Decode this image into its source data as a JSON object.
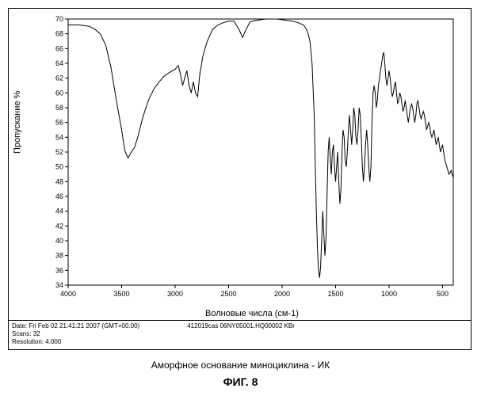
{
  "chart": {
    "type": "line",
    "xlim": [
      4000,
      400
    ],
    "ylim": [
      34,
      70
    ],
    "xtick_start": 4000,
    "xtick_step": 500,
    "xtick_end": 500,
    "ytick_start": 34,
    "ytick_step": 2,
    "ytick_end": 70,
    "xlabel": "Волновые числа (см-1)",
    "ylabel": "Пропускание %",
    "line_color": "#000000",
    "line_width": 1.0,
    "background_color": "#ffffff",
    "axis_color": "#000000",
    "tick_fontsize": 9,
    "label_fontsize": 11,
    "data": [
      [
        4000,
        69.2
      ],
      [
        3950,
        69.2
      ],
      [
        3900,
        69.2
      ],
      [
        3850,
        69.1
      ],
      [
        3800,
        69.0
      ],
      [
        3750,
        68.6
      ],
      [
        3700,
        68.0
      ],
      [
        3650,
        66.5
      ],
      [
        3600,
        63.5
      ],
      [
        3550,
        59.0
      ],
      [
        3500,
        55.0
      ],
      [
        3470,
        52.2
      ],
      [
        3440,
        51.2
      ],
      [
        3410,
        52.0
      ],
      [
        3380,
        52.6
      ],
      [
        3350,
        54.0
      ],
      [
        3300,
        56.8
      ],
      [
        3250,
        59.0
      ],
      [
        3200,
        60.5
      ],
      [
        3150,
        61.5
      ],
      [
        3100,
        62.3
      ],
      [
        3050,
        62.8
      ],
      [
        3000,
        63.2
      ],
      [
        2970,
        63.7
      ],
      [
        2950,
        62.5
      ],
      [
        2930,
        61.0
      ],
      [
        2910,
        62.0
      ],
      [
        2890,
        63.0
      ],
      [
        2870,
        61.0
      ],
      [
        2850,
        60.0
      ],
      [
        2830,
        61.5
      ],
      [
        2810,
        60.0
      ],
      [
        2790,
        59.5
      ],
      [
        2770,
        62.5
      ],
      [
        2740,
        65.0
      ],
      [
        2700,
        67.0
      ],
      [
        2650,
        68.6
      ],
      [
        2600,
        69.2
      ],
      [
        2550,
        69.5
      ],
      [
        2500,
        69.7
      ],
      [
        2450,
        69.7
      ],
      [
        2400,
        68.5
      ],
      [
        2370,
        67.5
      ],
      [
        2340,
        68.5
      ],
      [
        2300,
        69.6
      ],
      [
        2250,
        69.8
      ],
      [
        2200,
        69.9
      ],
      [
        2150,
        70.0
      ],
      [
        2100,
        70.0
      ],
      [
        2050,
        70.0
      ],
      [
        2000,
        69.9
      ],
      [
        1950,
        69.8
      ],
      [
        1900,
        69.7
      ],
      [
        1850,
        69.5
      ],
      [
        1800,
        69.2
      ],
      [
        1780,
        68.8
      ],
      [
        1760,
        68.2
      ],
      [
        1740,
        67.0
      ],
      [
        1720,
        64.0
      ],
      [
        1700,
        57.0
      ],
      [
        1690,
        50.0
      ],
      [
        1680,
        44.0
      ],
      [
        1670,
        39.0
      ],
      [
        1660,
        36.0
      ],
      [
        1650,
        35.0
      ],
      [
        1640,
        36.5
      ],
      [
        1630,
        40.0
      ],
      [
        1620,
        44.0
      ],
      [
        1610,
        41.0
      ],
      [
        1600,
        38.0
      ],
      [
        1590,
        40.0
      ],
      [
        1580,
        46.0
      ],
      [
        1570,
        52.0
      ],
      [
        1560,
        54.0
      ],
      [
        1550,
        51.0
      ],
      [
        1540,
        49.0
      ],
      [
        1530,
        52.0
      ],
      [
        1520,
        53.0
      ],
      [
        1510,
        50.0
      ],
      [
        1500,
        48.0
      ],
      [
        1490,
        50.0
      ],
      [
        1480,
        52.0
      ],
      [
        1470,
        48.0
      ],
      [
        1460,
        45.0
      ],
      [
        1450,
        47.0
      ],
      [
        1440,
        52.0
      ],
      [
        1430,
        55.0
      ],
      [
        1420,
        54.0
      ],
      [
        1410,
        51.0
      ],
      [
        1400,
        50.0
      ],
      [
        1390,
        52.0
      ],
      [
        1380,
        55.0
      ],
      [
        1370,
        57.0
      ],
      [
        1360,
        55.0
      ],
      [
        1350,
        53.0
      ],
      [
        1340,
        55.0
      ],
      [
        1330,
        58.0
      ],
      [
        1320,
        57.0
      ],
      [
        1310,
        54.0
      ],
      [
        1300,
        53.0
      ],
      [
        1290,
        55.0
      ],
      [
        1280,
        58.0
      ],
      [
        1270,
        57.0
      ],
      [
        1260,
        54.0
      ],
      [
        1250,
        50.0
      ],
      [
        1240,
        48.0
      ],
      [
        1230,
        50.0
      ],
      [
        1220,
        53.0
      ],
      [
        1210,
        55.0
      ],
      [
        1200,
        53.0
      ],
      [
        1190,
        50.0
      ],
      [
        1180,
        48.0
      ],
      [
        1170,
        50.0
      ],
      [
        1160,
        56.0
      ],
      [
        1150,
        60.0
      ],
      [
        1140,
        61.0
      ],
      [
        1130,
        60.0
      ],
      [
        1120,
        58.0
      ],
      [
        1110,
        59.0
      ],
      [
        1100,
        61.0
      ],
      [
        1090,
        62.0
      ],
      [
        1080,
        63.0
      ],
      [
        1070,
        64.0
      ],
      [
        1060,
        65.0
      ],
      [
        1050,
        65.5
      ],
      [
        1040,
        64.0
      ],
      [
        1030,
        62.0
      ],
      [
        1020,
        61.0
      ],
      [
        1010,
        62.0
      ],
      [
        1000,
        63.0
      ],
      [
        990,
        62.0
      ],
      [
        980,
        60.5
      ],
      [
        970,
        59.5
      ],
      [
        960,
        60.0
      ],
      [
        950,
        61.0
      ],
      [
        940,
        61.5
      ],
      [
        930,
        60.0
      ],
      [
        920,
        58.5
      ],
      [
        910,
        59.0
      ],
      [
        900,
        60.0
      ],
      [
        890,
        59.5
      ],
      [
        880,
        58.5
      ],
      [
        870,
        57.5
      ],
      [
        860,
        58.0
      ],
      [
        850,
        59.0
      ],
      [
        840,
        58.0
      ],
      [
        830,
        57.0
      ],
      [
        820,
        56.0
      ],
      [
        810,
        57.0
      ],
      [
        800,
        58.0
      ],
      [
        790,
        58.5
      ],
      [
        780,
        58.0
      ],
      [
        770,
        57.0
      ],
      [
        760,
        56.0
      ],
      [
        750,
        57.0
      ],
      [
        740,
        58.5
      ],
      [
        730,
        59.0
      ],
      [
        720,
        58.0
      ],
      [
        710,
        57.0
      ],
      [
        700,
        56.5
      ],
      [
        690,
        57.0
      ],
      [
        680,
        57.5
      ],
      [
        670,
        57.0
      ],
      [
        660,
        56.0
      ],
      [
        650,
        55.0
      ],
      [
        640,
        55.5
      ],
      [
        630,
        56.0
      ],
      [
        620,
        55.5
      ],
      [
        610,
        54.5
      ],
      [
        600,
        54.0
      ],
      [
        590,
        54.5
      ],
      [
        580,
        55.0
      ],
      [
        570,
        54.0
      ],
      [
        560,
        53.0
      ],
      [
        550,
        53.5
      ],
      [
        540,
        54.0
      ],
      [
        530,
        53.0
      ],
      [
        520,
        52.0
      ],
      [
        510,
        52.5
      ],
      [
        500,
        53.0
      ],
      [
        490,
        52.0
      ],
      [
        480,
        51.0
      ],
      [
        470,
        50.5
      ],
      [
        460,
        50.0
      ],
      [
        450,
        49.5
      ],
      [
        440,
        49.0
      ],
      [
        430,
        49.2
      ],
      [
        420,
        49.5
      ],
      [
        410,
        49.0
      ],
      [
        400,
        48.5
      ]
    ]
  },
  "meta": {
    "date_label": "Date:",
    "date_value": "Fri Feb 02 21:41:21 2007 (GMT+00.00)",
    "ref": "412019cas   06NY05001.HQ00002   KBr",
    "scans_label": "Scans:",
    "scans_value": "32",
    "resolution_label": "Resolution:",
    "resolution_value": "4.000"
  },
  "caption": "Аморфное основание миноциклина - ИК",
  "figure_label": "ФИГ. 8"
}
